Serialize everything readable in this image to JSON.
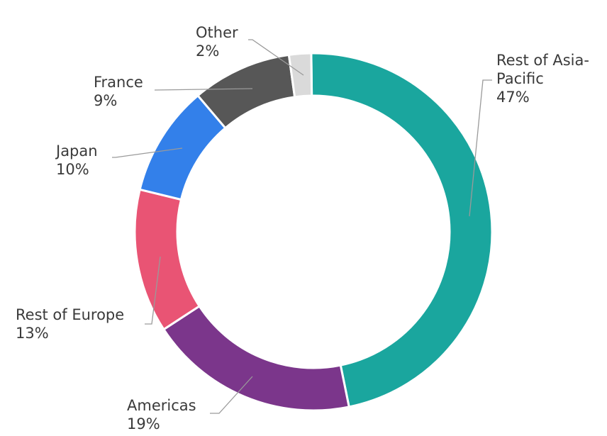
{
  "chart_data": {
    "type": "pie",
    "variant": "donut",
    "categories": [
      "Rest of Asia-Pacific",
      "Americas",
      "Rest of Europe",
      "Japan",
      "France",
      "Other"
    ],
    "series": [
      {
        "values": [
          47,
          19,
          13,
          10,
          9,
          2
        ]
      }
    ],
    "display_labels": [
      {
        "lines": [
          "Rest of Asia-",
          "Pacific"
        ],
        "pct": "47%"
      },
      {
        "lines": [
          "Americas"
        ],
        "pct": "19%"
      },
      {
        "lines": [
          "Rest of Europe"
        ],
        "pct": "13%"
      },
      {
        "lines": [
          "Japan"
        ],
        "pct": "10%"
      },
      {
        "lines": [
          "France"
        ],
        "pct": "9%"
      },
      {
        "lines": [
          "Other"
        ],
        "pct": "2%"
      }
    ],
    "colors": [
      "#1aa69e",
      "#7b368b",
      "#e95474",
      "#3380ea",
      "#575757",
      "#dadada"
    ],
    "legend": "none"
  }
}
